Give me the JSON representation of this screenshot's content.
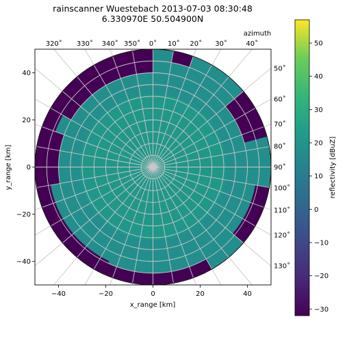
{
  "chart_data": {
    "type": "heatmap",
    "title_line1": "rainscanner Wuestebach 2013-07-03 08:30:48",
    "title_line2": "6.330970E 50.504900N",
    "xlabel": "x_range [km]",
    "ylabel": "y_range [km]",
    "xlim": [
      -50,
      50
    ],
    "ylim": [
      -50,
      50
    ],
    "x_ticks": [
      -40,
      -20,
      0,
      20,
      40
    ],
    "y_ticks": [
      -40,
      -20,
      0,
      20,
      40
    ],
    "max_range_km": 50,
    "grid": true,
    "polar_grid": {
      "range_rings_km": [
        5,
        10,
        15,
        20,
        25,
        30,
        35,
        40,
        45,
        50
      ],
      "azimuth_step_deg": 10,
      "azimuth_title": "azimuth",
      "azimuth_tick_labels_top": [
        "320˚",
        "330˚",
        "340˚",
        "350˚",
        "0˚",
        "10˚",
        "20˚",
        "30˚",
        "40˚"
      ],
      "azimuth_tick_labels_right": [
        "50˚",
        "60˚",
        "70˚",
        "80˚",
        "90˚",
        "100˚",
        "110˚",
        "120˚",
        "130˚"
      ]
    },
    "colorbar": {
      "label": "reflectivity [dBuZ]",
      "vmin": -32,
      "vmax": 57,
      "ticks": [
        -30,
        -20,
        -10,
        0,
        10,
        20,
        30,
        40,
        50
      ],
      "colormap": "viridis",
      "placement": "right"
    },
    "field_description": {
      "background_value_dbuz": 12,
      "near_center_value_dbuz": 18,
      "no_echo_value_dbuz": -32,
      "no_echo_sectors": [
        {
          "az_from": 300,
          "az_to": 360,
          "r_from": 40,
          "r_to": 50
        },
        {
          "az_from": 205,
          "az_to": 300,
          "r_from": 44,
          "r_to": 50
        },
        {
          "az_from": 150,
          "az_to": 205,
          "r_from": 45,
          "r_to": 50
        },
        {
          "az_from": 260,
          "az_to": 290,
          "r_from": 40,
          "r_to": 50
        },
        {
          "az_from": 50,
          "az_to": 75,
          "r_from": 40,
          "r_to": 50
        },
        {
          "az_from": 100,
          "az_to": 130,
          "r_from": 44,
          "r_to": 50
        },
        {
          "az_from": 10,
          "az_to": 20,
          "r_from": 45,
          "r_to": 50
        }
      ]
    }
  }
}
